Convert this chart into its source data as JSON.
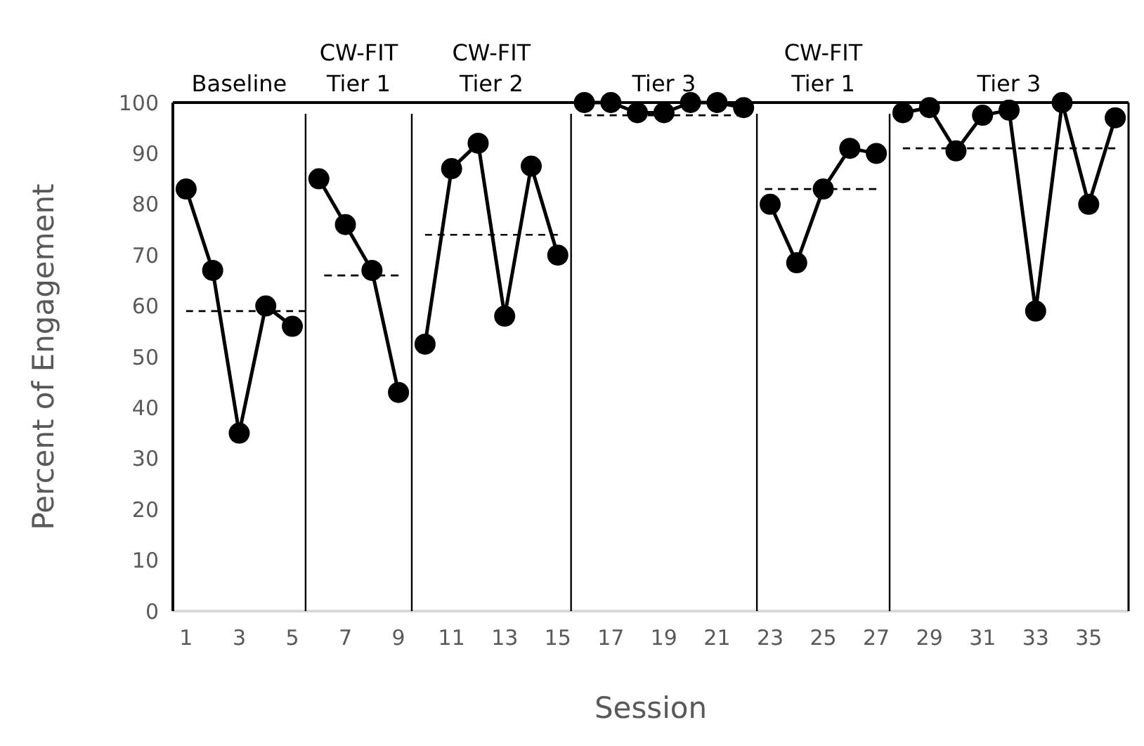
{
  "chart_data": {
    "type": "line",
    "xlabel": "Session",
    "ylabel": "Percent of Engagement",
    "xlim": [
      0.5,
      36.5
    ],
    "xticks": [
      1,
      3,
      5,
      7,
      9,
      11,
      13,
      15,
      17,
      19,
      21,
      23,
      25,
      27,
      29,
      31,
      33,
      35
    ],
    "ylim": [
      0,
      100
    ],
    "yticks": [
      0,
      10,
      20,
      30,
      40,
      50,
      60,
      70,
      80,
      90,
      100
    ],
    "grid": false,
    "marker": "circle",
    "line_style": "solid",
    "series": [
      {
        "color": "#000000",
        "x": [
          1,
          2,
          3,
          4,
          5
        ],
        "values": [
          83,
          67,
          35,
          60,
          56
        ]
      },
      {
        "color": "#000000",
        "x": [
          6,
          7,
          8,
          9
        ],
        "values": [
          85,
          76,
          67,
          43
        ]
      },
      {
        "color": "#000000",
        "x": [
          10,
          11,
          12,
          13,
          14,
          15
        ],
        "values": [
          52.5,
          87,
          92,
          58,
          87.5,
          70
        ]
      },
      {
        "color": "#000000",
        "x": [
          16,
          17,
          18,
          19,
          20,
          21,
          22
        ],
        "values": [
          100,
          100,
          98,
          98,
          100,
          100,
          99
        ]
      },
      {
        "color": "#000000",
        "x": [
          23,
          24,
          25,
          26,
          27
        ],
        "values": [
          80,
          68.5,
          83,
          91,
          90
        ]
      },
      {
        "color": "#000000",
        "x": [
          28,
          29,
          30,
          31,
          32,
          33,
          34,
          35,
          36
        ],
        "values": [
          98,
          99,
          90.5,
          97.5,
          98.5,
          59,
          100,
          80,
          97
        ]
      },
      {
        "color": "#000000",
        "line_style": "dashed",
        "marker": "none",
        "x": [
          1,
          5.5
        ],
        "values": [
          59,
          59
        ]
      },
      {
        "color": "#000000",
        "line_style": "dashed",
        "marker": "none",
        "x": [
          6.2,
          9
        ],
        "values": [
          66,
          66
        ]
      },
      {
        "color": "#000000",
        "line_style": "dashed",
        "marker": "none",
        "x": [
          10,
          15
        ],
        "values": [
          74,
          74
        ]
      },
      {
        "color": "#000000",
        "line_style": "dashed",
        "marker": "none",
        "x": [
          16,
          22
        ],
        "values": [
          97.5,
          97.5
        ]
      },
      {
        "color": "#000000",
        "line_style": "dashed",
        "marker": "none",
        "x": [
          22.8,
          27
        ],
        "values": [
          83,
          83
        ]
      },
      {
        "color": "#000000",
        "line_style": "dashed",
        "marker": "none",
        "x": [
          28,
          36
        ],
        "values": [
          91,
          91
        ]
      }
    ],
    "ref_lines": [
      {
        "axis": "x",
        "value": 5.5,
        "color": "#000000"
      },
      {
        "axis": "x",
        "value": 9.5,
        "color": "#000000"
      },
      {
        "axis": "x",
        "value": 15.5,
        "color": "#000000"
      },
      {
        "axis": "x",
        "value": 22.5,
        "color": "#000000"
      },
      {
        "axis": "x",
        "value": 27.5,
        "color": "#000000"
      }
    ],
    "annotations": [
      "Baseline",
      "CW-FIT Tier 1",
      "CW-FIT Tier 2",
      "Tier 3",
      "CW-FIT Tier 1",
      "Tier 3"
    ]
  }
}
